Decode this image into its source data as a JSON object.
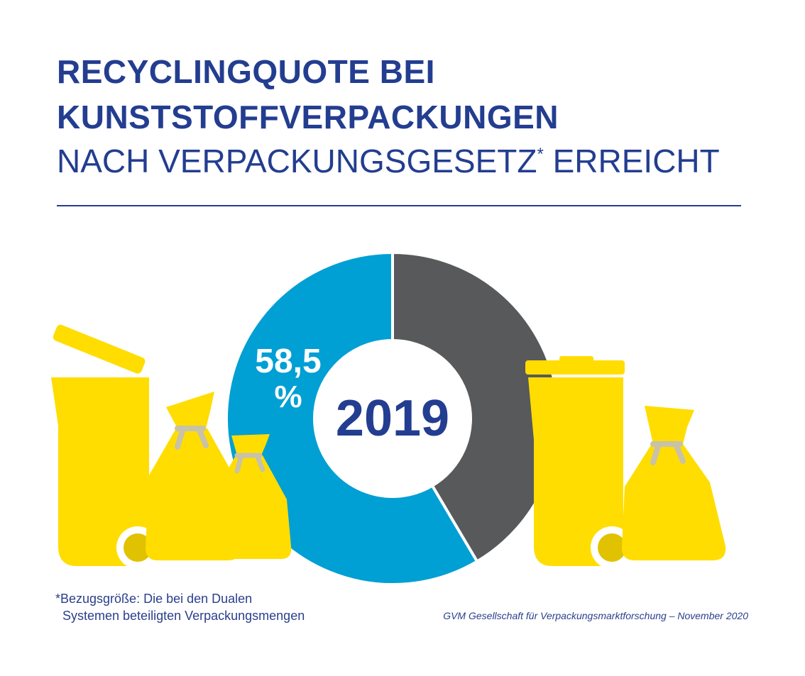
{
  "header": {
    "title_line1": "RECYCLINGQUOTE BEI",
    "title_line2": "KUNSTSTOFFVERPACKUNGEN",
    "subtitle_main": "NACH VERPACKUNGSGESETZ",
    "subtitle_mark": "*",
    "subtitle_end": " ERREICHT"
  },
  "colors": {
    "title": "#233d90",
    "recycled": "#009fd4",
    "rest": "#58595b",
    "bins": "#ffdd00",
    "bin_wheel": "#e1c200",
    "bag_tie": "#c8c2a8"
  },
  "chart_data": {
    "type": "pie",
    "variant": "donut",
    "title": "",
    "center_label": "2019",
    "value_label_number": "58,5",
    "value_label_unit": "%",
    "slices": [
      {
        "label": "",
        "value": 58.5,
        "color": "#009fd4"
      },
      {
        "label": "",
        "value": 41.5,
        "color": "#58595b"
      }
    ],
    "legend": "none"
  },
  "illustration": {
    "left_group": [
      "waste-bin-icon",
      "yellow-bag-icon",
      "yellow-bag-icon"
    ],
    "right_group": [
      "waste-bin-icon",
      "yellow-bag-icon"
    ]
  },
  "footer": {
    "footnote_line1": "*Bezugsgröße: Die bei den Dualen",
    "footnote_line2": "Systemen beteiligten Verpackungsmengen",
    "source": "GVM Gesellschaft für Verpackungsmarktforschung – November 2020"
  }
}
